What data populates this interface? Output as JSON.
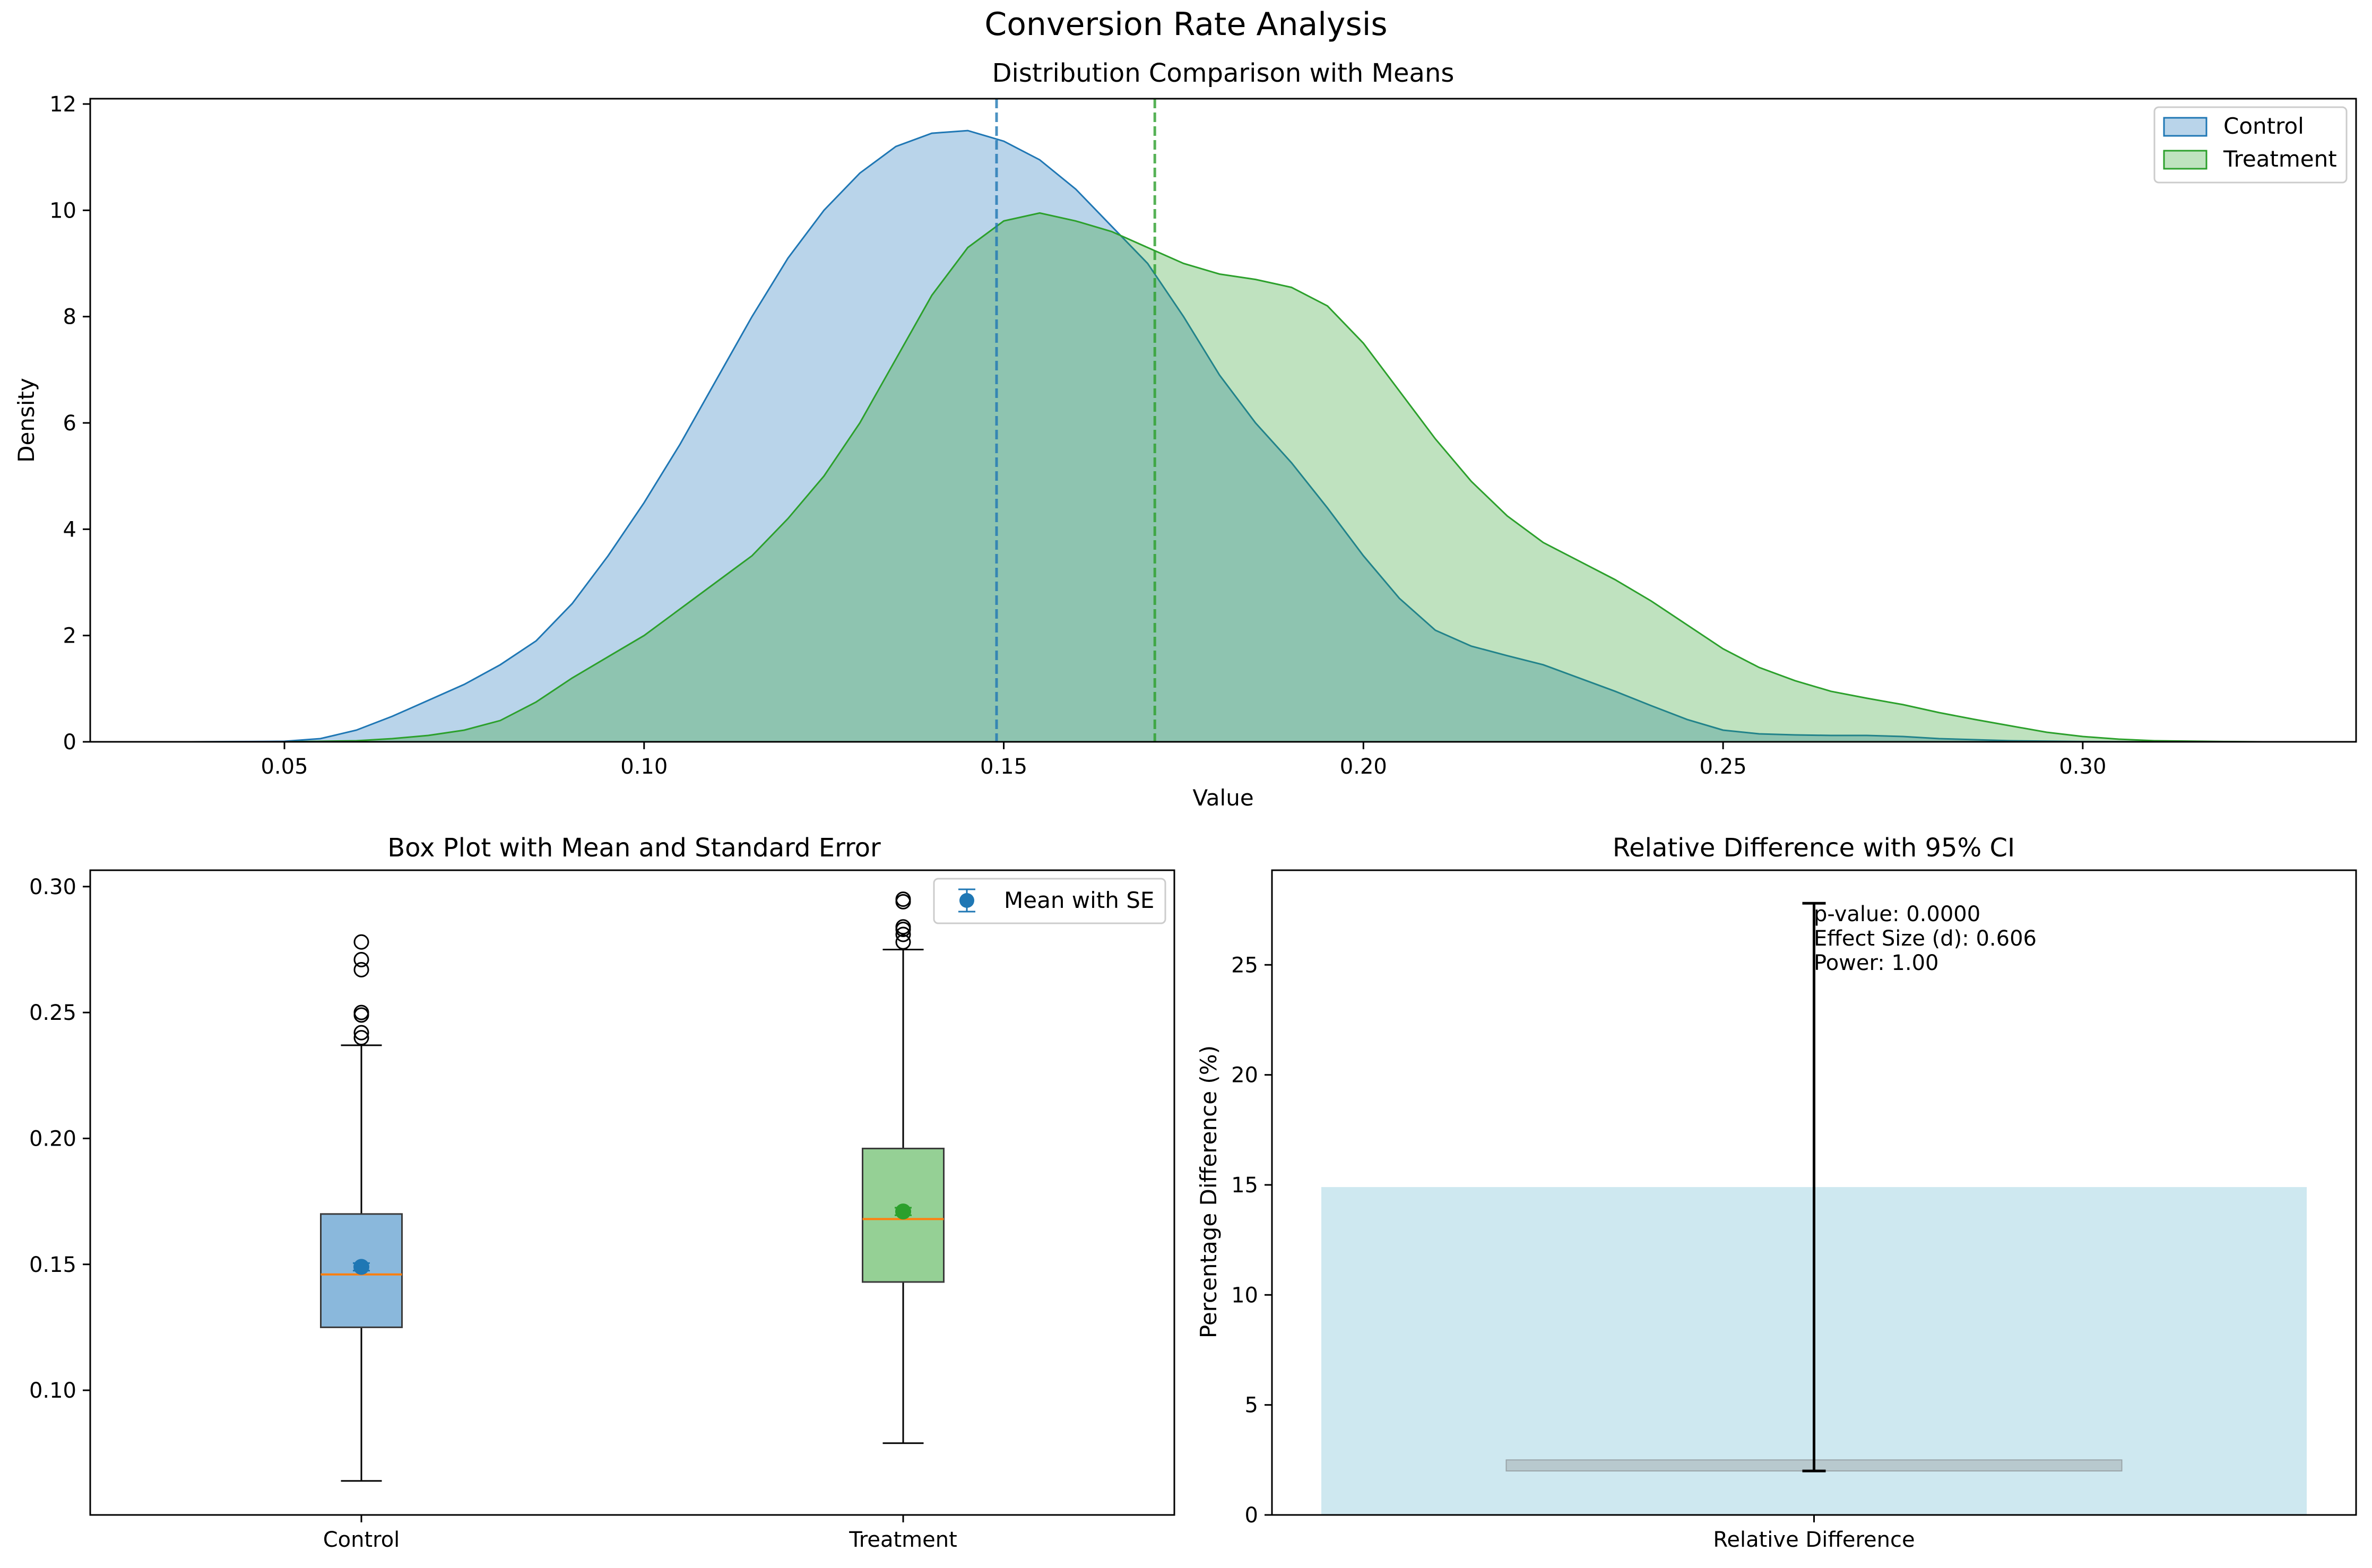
{
  "figure": {
    "title": "Conversion Rate Analysis"
  },
  "colors": {
    "control": "#1f77b4",
    "treatment": "#2ca02c",
    "control_fill": "#b9d4ea",
    "treatment_fill": "#bfe3bf",
    "overlap_fill": "#8fc4ab",
    "control_box": "#8ab8dc",
    "treatment_box": "#95d095",
    "median": "#ff7f0e",
    "relative_bar": "#add8e6",
    "ci_band": "#aab4b8"
  },
  "chart_data": [
    {
      "type": "area",
      "title": "Distribution Comparison with Means",
      "xlabel": "Value",
      "ylabel": "Density",
      "xlim": [
        0.023,
        0.338
      ],
      "ylim": [
        0,
        12.1
      ],
      "xticks": [
        0.05,
        0.1,
        0.15,
        0.2,
        0.25,
        0.3
      ],
      "xtick_labels": [
        "0.05",
        "0.10",
        "0.15",
        "0.20",
        "0.25",
        "0.30"
      ],
      "yticks": [
        0,
        2,
        4,
        6,
        8,
        10,
        12
      ],
      "ytick_labels": [
        "0",
        "2",
        "4",
        "6",
        "8",
        "10",
        "12"
      ],
      "legend_position": "top-right",
      "series": [
        {
          "name": "Control",
          "mean": 0.149,
          "points": [
            [
              0.037,
              0
            ],
            [
              0.045,
              0.005
            ],
            [
              0.05,
              0.01
            ],
            [
              0.055,
              0.06
            ],
            [
              0.06,
              0.22
            ],
            [
              0.065,
              0.48
            ],
            [
              0.07,
              0.78
            ],
            [
              0.075,
              1.08
            ],
            [
              0.08,
              1.45
            ],
            [
              0.085,
              1.9
            ],
            [
              0.09,
              2.6
            ],
            [
              0.095,
              3.5
            ],
            [
              0.1,
              4.5
            ],
            [
              0.105,
              5.6
            ],
            [
              0.11,
              6.8
            ],
            [
              0.115,
              8.0
            ],
            [
              0.12,
              9.1
            ],
            [
              0.125,
              10.0
            ],
            [
              0.13,
              10.7
            ],
            [
              0.135,
              11.2
            ],
            [
              0.14,
              11.45
            ],
            [
              0.145,
              11.5
            ],
            [
              0.15,
              11.3
            ],
            [
              0.155,
              10.95
            ],
            [
              0.16,
              10.4
            ],
            [
              0.165,
              9.7
            ],
            [
              0.17,
              9.0
            ],
            [
              0.175,
              8.0
            ],
            [
              0.18,
              6.9
            ],
            [
              0.185,
              6.0
            ],
            [
              0.19,
              5.25
            ],
            [
              0.195,
              4.4
            ],
            [
              0.2,
              3.5
            ],
            [
              0.205,
              2.7
            ],
            [
              0.21,
              2.1
            ],
            [
              0.215,
              1.8
            ],
            [
              0.22,
              1.62
            ],
            [
              0.225,
              1.45
            ],
            [
              0.23,
              1.2
            ],
            [
              0.235,
              0.95
            ],
            [
              0.24,
              0.68
            ],
            [
              0.245,
              0.42
            ],
            [
              0.25,
              0.22
            ],
            [
              0.255,
              0.15
            ],
            [
              0.26,
              0.13
            ],
            [
              0.265,
              0.12
            ],
            [
              0.27,
              0.12
            ],
            [
              0.275,
              0.1
            ],
            [
              0.28,
              0.06
            ],
            [
              0.29,
              0.02
            ],
            [
              0.3,
              0.005
            ],
            [
              0.31,
              0
            ]
          ]
        },
        {
          "name": "Treatment",
          "mean": 0.171,
          "points": [
            [
              0.05,
              0
            ],
            [
              0.055,
              0.01
            ],
            [
              0.06,
              0.02
            ],
            [
              0.065,
              0.06
            ],
            [
              0.07,
              0.12
            ],
            [
              0.075,
              0.22
            ],
            [
              0.08,
              0.4
            ],
            [
              0.085,
              0.75
            ],
            [
              0.09,
              1.2
            ],
            [
              0.095,
              1.6
            ],
            [
              0.1,
              2.0
            ],
            [
              0.105,
              2.5
            ],
            [
              0.11,
              3.0
            ],
            [
              0.115,
              3.5
            ],
            [
              0.12,
              4.2
            ],
            [
              0.125,
              5.0
            ],
            [
              0.13,
              6.0
            ],
            [
              0.135,
              7.2
            ],
            [
              0.14,
              8.4
            ],
            [
              0.145,
              9.3
            ],
            [
              0.15,
              9.8
            ],
            [
              0.155,
              9.95
            ],
            [
              0.16,
              9.8
            ],
            [
              0.165,
              9.6
            ],
            [
              0.17,
              9.3
            ],
            [
              0.175,
              9.0
            ],
            [
              0.18,
              8.8
            ],
            [
              0.185,
              8.7
            ],
            [
              0.19,
              8.55
            ],
            [
              0.195,
              8.2
            ],
            [
              0.2,
              7.5
            ],
            [
              0.205,
              6.6
            ],
            [
              0.21,
              5.7
            ],
            [
              0.215,
              4.9
            ],
            [
              0.22,
              4.25
            ],
            [
              0.225,
              3.75
            ],
            [
              0.23,
              3.4
            ],
            [
              0.235,
              3.05
            ],
            [
              0.24,
              2.65
            ],
            [
              0.245,
              2.2
            ],
            [
              0.25,
              1.75
            ],
            [
              0.255,
              1.4
            ],
            [
              0.26,
              1.15
            ],
            [
              0.265,
              0.95
            ],
            [
              0.27,
              0.82
            ],
            [
              0.275,
              0.7
            ],
            [
              0.28,
              0.55
            ],
            [
              0.285,
              0.42
            ],
            [
              0.29,
              0.3
            ],
            [
              0.295,
              0.18
            ],
            [
              0.3,
              0.1
            ],
            [
              0.305,
              0.05
            ],
            [
              0.31,
              0.02
            ],
            [
              0.32,
              0.005
            ],
            [
              0.325,
              0
            ]
          ]
        }
      ]
    },
    {
      "type": "box",
      "title": "Box Plot with Mean and Standard Error",
      "categories": [
        "Control",
        "Treatment"
      ],
      "ylim": [
        0.0505,
        0.3065
      ],
      "yticks": [
        0.1,
        0.15,
        0.2,
        0.25,
        0.3
      ],
      "ytick_labels": [
        "0.10",
        "0.15",
        "0.20",
        "0.25",
        "0.30"
      ],
      "legend": "Mean with SE",
      "legend_position": "top-right",
      "boxes": [
        {
          "name": "Control",
          "q1": 0.125,
          "median": 0.146,
          "q3": 0.17,
          "whisker_low": 0.064,
          "whisker_high": 0.237,
          "mean": 0.149,
          "se": 0.0015,
          "outliers": [
            0.24,
            0.242,
            0.249,
            0.25,
            0.267,
            0.271,
            0.278
          ]
        },
        {
          "name": "Treatment",
          "q1": 0.143,
          "median": 0.168,
          "q3": 0.196,
          "whisker_low": 0.079,
          "whisker_high": 0.275,
          "mean": 0.171,
          "se": 0.0015,
          "outliers": [
            0.278,
            0.281,
            0.283,
            0.284,
            0.294,
            0.295
          ]
        }
      ]
    },
    {
      "type": "bar",
      "title": "Relative Difference with 95% CI",
      "ylabel": "Percentage Difference (%)",
      "categories": [
        "Relative Difference"
      ],
      "values": [
        14.9
      ],
      "ci": [
        2.0,
        27.8
      ],
      "ci_band": [
        2.0,
        2.5
      ],
      "ylim": [
        0,
        29.3
      ],
      "yticks": [
        0,
        5,
        10,
        15,
        20,
        25
      ],
      "ytick_labels": [
        "0",
        "5",
        "10",
        "15",
        "20",
        "25"
      ],
      "annotations": [
        "p-value: 0.0000",
        "Effect Size (d): 0.606",
        "Power: 1.00"
      ]
    }
  ]
}
